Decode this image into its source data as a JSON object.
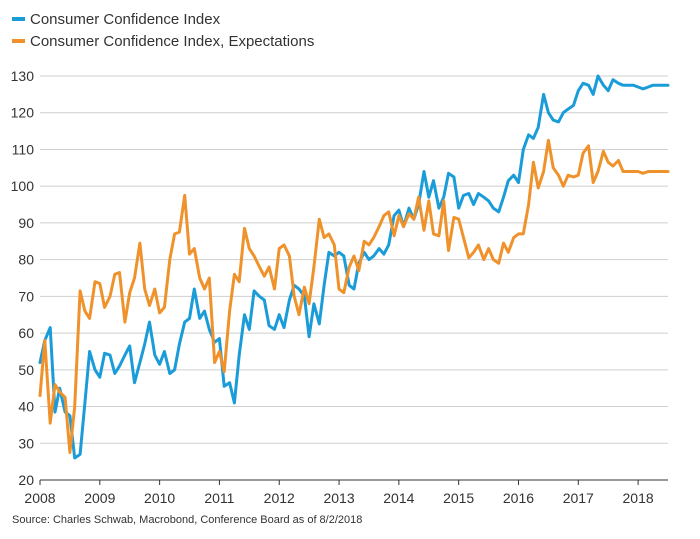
{
  "legend": [
    {
      "label": "Consumer Confidence Index",
      "color": "#1a9cd8"
    },
    {
      "label": "Consumer Confidence Index, Expectations",
      "color": "#f0922b"
    }
  ],
  "source": "Source: Charles Schwab, Macrobond, Conference Board as of 8/2/2018",
  "chart_data": {
    "type": "line",
    "title": "",
    "xlabel": "",
    "ylabel": "",
    "ylim": [
      20,
      130
    ],
    "xlim": [
      2008.0,
      2018.5
    ],
    "yticks": [
      20,
      30,
      40,
      50,
      60,
      70,
      80,
      90,
      100,
      110,
      120,
      130
    ],
    "xticks": [
      2008,
      2009,
      2010,
      2011,
      2012,
      2013,
      2014,
      2015,
      2016,
      2017,
      2018
    ],
    "grid": "horizontal",
    "legend_position": "top-left",
    "series": [
      {
        "name": "Consumer Confidence Index",
        "color": "#1a9cd8",
        "x": [
          2008.0,
          2008.08,
          2008.17,
          2008.25,
          2008.33,
          2008.42,
          2008.5,
          2008.58,
          2008.67,
          2008.75,
          2008.83,
          2008.92,
          2009.0,
          2009.08,
          2009.17,
          2009.25,
          2009.33,
          2009.42,
          2009.5,
          2009.58,
          2009.67,
          2009.75,
          2009.83,
          2009.92,
          2010.0,
          2010.08,
          2010.17,
          2010.25,
          2010.33,
          2010.42,
          2010.5,
          2010.58,
          2010.67,
          2010.75,
          2010.83,
          2010.92,
          2011.0,
          2011.08,
          2011.17,
          2011.25,
          2011.33,
          2011.42,
          2011.5,
          2011.58,
          2011.67,
          2011.75,
          2011.83,
          2011.92,
          2012.0,
          2012.08,
          2012.17,
          2012.25,
          2012.33,
          2012.42,
          2012.5,
          2012.58,
          2012.67,
          2012.75,
          2012.83,
          2012.92,
          2013.0,
          2013.08,
          2013.17,
          2013.25,
          2013.33,
          2013.42,
          2013.5,
          2013.58,
          2013.67,
          2013.75,
          2013.83,
          2013.92,
          2014.0,
          2014.08,
          2014.17,
          2014.25,
          2014.33,
          2014.42,
          2014.5,
          2014.58,
          2014.67,
          2014.75,
          2014.83,
          2014.92,
          2015.0,
          2015.08,
          2015.17,
          2015.25,
          2015.33,
          2015.42,
          2015.5,
          2015.58,
          2015.67,
          2015.75,
          2015.83,
          2015.92,
          2016.0,
          2016.08,
          2016.17,
          2016.25,
          2016.33,
          2016.42,
          2016.5,
          2016.58,
          2016.67,
          2016.75,
          2016.83,
          2016.92,
          2017.0,
          2017.08,
          2017.17,
          2017.25,
          2017.33,
          2017.42,
          2017.5,
          2017.58,
          2017.67,
          2017.75,
          2017.83,
          2017.92,
          2018.0,
          2018.08,
          2018.17,
          2018.25,
          2018.33,
          2018.42,
          2018.5
        ],
        "y": [
          52,
          58,
          61.5,
          38.5,
          45,
          38.5,
          37.5,
          26,
          27,
          41,
          55,
          50,
          48,
          54.5,
          54,
          49,
          51,
          54,
          56.5,
          46.5,
          52,
          57,
          63,
          54,
          51.5,
          55,
          49,
          50,
          57,
          63,
          64,
          72,
          64,
          66,
          61,
          57.5,
          58.5,
          45.5,
          46.5,
          41,
          54,
          65,
          61,
          71.5,
          70,
          69,
          62,
          61,
          65,
          61.5,
          69,
          73,
          72,
          70,
          59,
          68,
          62.5,
          73,
          82,
          81,
          82,
          81,
          73,
          72,
          79,
          82,
          80,
          81,
          83,
          81.5,
          84,
          92,
          93.5,
          89,
          94,
          91,
          95,
          104,
          97,
          101.5,
          94,
          97,
          103.5,
          102.5,
          94,
          97.5,
          98,
          95,
          98,
          97,
          96,
          94,
          93,
          97,
          101.5,
          103,
          101,
          110,
          114,
          113,
          116,
          125,
          120,
          118,
          117.5,
          120,
          121,
          122,
          126,
          128,
          127.5,
          125,
          130,
          127.5,
          126,
          129,
          128,
          127.5,
          127.5,
          127.5,
          127,
          126.5,
          127,
          127.5,
          127.5,
          127.5,
          127.5
        ]
      },
      {
        "name": "Consumer Confidence Index, Expectations",
        "color": "#f0922b",
        "x": [
          2008.0,
          2008.08,
          2008.17,
          2008.25,
          2008.33,
          2008.42,
          2008.5,
          2008.58,
          2008.67,
          2008.75,
          2008.83,
          2008.92,
          2009.0,
          2009.08,
          2009.17,
          2009.25,
          2009.33,
          2009.42,
          2009.5,
          2009.58,
          2009.67,
          2009.75,
          2009.83,
          2009.92,
          2010.0,
          2010.08,
          2010.17,
          2010.25,
          2010.33,
          2010.42,
          2010.5,
          2010.58,
          2010.67,
          2010.75,
          2010.83,
          2010.92,
          2011.0,
          2011.08,
          2011.17,
          2011.25,
          2011.33,
          2011.42,
          2011.5,
          2011.58,
          2011.67,
          2011.75,
          2011.83,
          2011.92,
          2012.0,
          2012.08,
          2012.17,
          2012.25,
          2012.33,
          2012.42,
          2012.5,
          2012.58,
          2012.67,
          2012.75,
          2012.83,
          2012.92,
          2013.0,
          2013.08,
          2013.17,
          2013.25,
          2013.33,
          2013.42,
          2013.5,
          2013.58,
          2013.67,
          2013.75,
          2013.83,
          2013.92,
          2014.0,
          2014.08,
          2014.17,
          2014.25,
          2014.33,
          2014.42,
          2014.5,
          2014.58,
          2014.67,
          2014.75,
          2014.83,
          2014.92,
          2015.0,
          2015.08,
          2015.17,
          2015.25,
          2015.33,
          2015.42,
          2015.5,
          2015.58,
          2015.67,
          2015.75,
          2015.83,
          2015.92,
          2016.0,
          2016.08,
          2016.17,
          2016.25,
          2016.33,
          2016.42,
          2016.5,
          2016.58,
          2016.67,
          2016.75,
          2016.83,
          2016.92,
          2017.0,
          2017.08,
          2017.17,
          2017.25,
          2017.33,
          2017.42,
          2017.5,
          2017.58,
          2017.67,
          2017.75,
          2017.83,
          2017.92,
          2018.0,
          2018.08,
          2018.17,
          2018.25,
          2018.33,
          2018.42,
          2018.5
        ],
        "y": [
          43,
          58,
          35.5,
          46,
          44,
          42.5,
          27.5,
          40,
          71.5,
          66,
          64,
          74,
          73.5,
          67,
          70,
          76,
          76.5,
          63,
          71,
          75,
          84.5,
          72,
          67.5,
          72,
          65.5,
          67,
          80,
          87,
          87.5,
          97.5,
          81.5,
          83,
          75,
          72,
          75,
          52,
          55,
          49.5,
          66,
          76,
          74,
          88.5,
          83,
          81,
          78,
          75.5,
          78,
          72,
          83,
          84,
          81,
          70,
          65,
          72.5,
          68,
          78,
          91,
          86,
          87,
          84,
          72,
          71,
          78,
          81,
          77,
          85,
          84,
          86,
          89,
          92,
          93,
          86.5,
          92,
          89,
          92.5,
          91,
          97,
          88,
          96,
          87,
          86.5,
          96,
          82.5,
          91.5,
          91,
          86,
          80.5,
          82,
          84,
          80,
          83,
          80,
          79,
          84.5,
          82,
          86,
          87,
          87,
          95,
          106.5,
          99.5,
          104,
          112.5,
          105,
          103,
          100,
          103,
          102.5,
          103,
          109,
          111,
          101,
          104,
          109.5,
          106.5,
          105.5,
          107,
          104,
          104,
          104,
          104,
          103.5,
          104,
          104,
          104,
          104,
          104
        ]
      }
    ]
  }
}
